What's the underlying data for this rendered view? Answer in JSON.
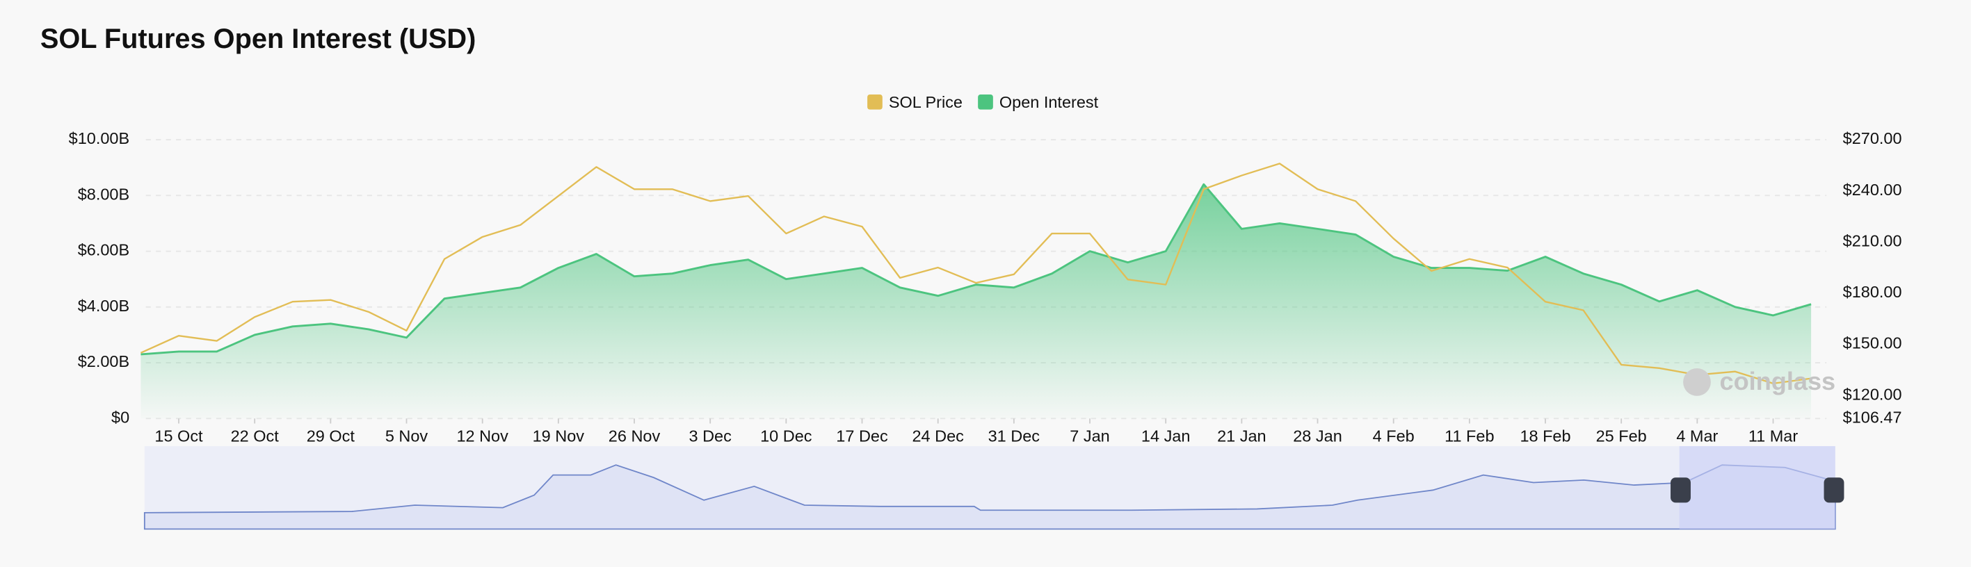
{
  "chart_data": {
    "type": "line",
    "title": "SOL Futures Open Interest (USD)",
    "watermark": "coinglass",
    "categories": [
      null,
      "15 Oct",
      null,
      "22 Oct",
      null,
      "29 Oct",
      null,
      "5 Nov",
      null,
      "12 Nov",
      null,
      "19 Nov",
      null,
      "26 Nov",
      null,
      "3 Dec",
      null,
      "10 Dec",
      null,
      "17 Dec",
      null,
      "24 Dec",
      null,
      "31 Dec",
      null,
      "7 Jan",
      null,
      "14 Jan",
      null,
      "21 Jan",
      null,
      "28 Jan",
      null,
      "4 Feb",
      null,
      "11 Feb",
      null,
      "18 Feb",
      null,
      "25 Feb",
      null,
      "4 Mar",
      null,
      "11 Mar",
      null
    ],
    "series": [
      {
        "name": "SOL Price",
        "color": "#e2bd55",
        "axis": "y2",
        "values": [
          145,
          155,
          152,
          166,
          175,
          176,
          169,
          158,
          200,
          213,
          220,
          237,
          254,
          241,
          241,
          234,
          237,
          215,
          225,
          219,
          189,
          195,
          186,
          191,
          215,
          215,
          188,
          185,
          241,
          249,
          256,
          241,
          234,
          212,
          193,
          200,
          195,
          175,
          170,
          138,
          136,
          132,
          134,
          127,
          130
        ]
      },
      {
        "name": "Open Interest",
        "color": "#4cc47f",
        "area": true,
        "values": [
          2300000000,
          2400000000,
          2400000000,
          3000000000,
          3300000000,
          3400000000,
          3200000000,
          2900000000,
          4300000000,
          4500000000,
          4700000000,
          5400000000,
          5900000000,
          5100000000,
          5200000000,
          5500000000,
          5700000000,
          5000000000,
          5200000000,
          5400000000,
          4700000000,
          4400000000,
          4800000000,
          4700000000,
          5200000000,
          6000000000,
          5600000000,
          6000000000,
          8400000000,
          6800000000,
          7000000000,
          6800000000,
          6600000000,
          5800000000,
          5400000000,
          5400000000,
          5300000000,
          5800000000,
          5200000000,
          4800000000,
          4200000000,
          4600000000,
          4000000000,
          3700000000,
          4100000000
        ]
      }
    ],
    "ylim": [
      0,
      10000000000
    ],
    "yticks": [
      {
        "value": 0,
        "label": "$0"
      },
      {
        "value": 2000000000,
        "label": "$2.00B"
      },
      {
        "value": 4000000000,
        "label": "$4.00B"
      },
      {
        "value": 6000000000,
        "label": "$6.00B"
      },
      {
        "value": 8000000000,
        "label": "$8.00B"
      },
      {
        "value": 10000000000,
        "label": "$10.00B"
      }
    ],
    "y2lim": [
      106.47,
      270
    ],
    "y2ticks": [
      {
        "value": 106.47,
        "label": "$106.47"
      },
      {
        "value": 120,
        "label": "$120.00"
      },
      {
        "value": 150,
        "label": "$150.00"
      },
      {
        "value": 180,
        "label": "$180.00"
      },
      {
        "value": 210,
        "label": "$210.00"
      },
      {
        "value": 240,
        "label": "$240.00"
      },
      {
        "value": 270,
        "label": "$270.00"
      }
    ],
    "grid": true,
    "legend": "top"
  }
}
